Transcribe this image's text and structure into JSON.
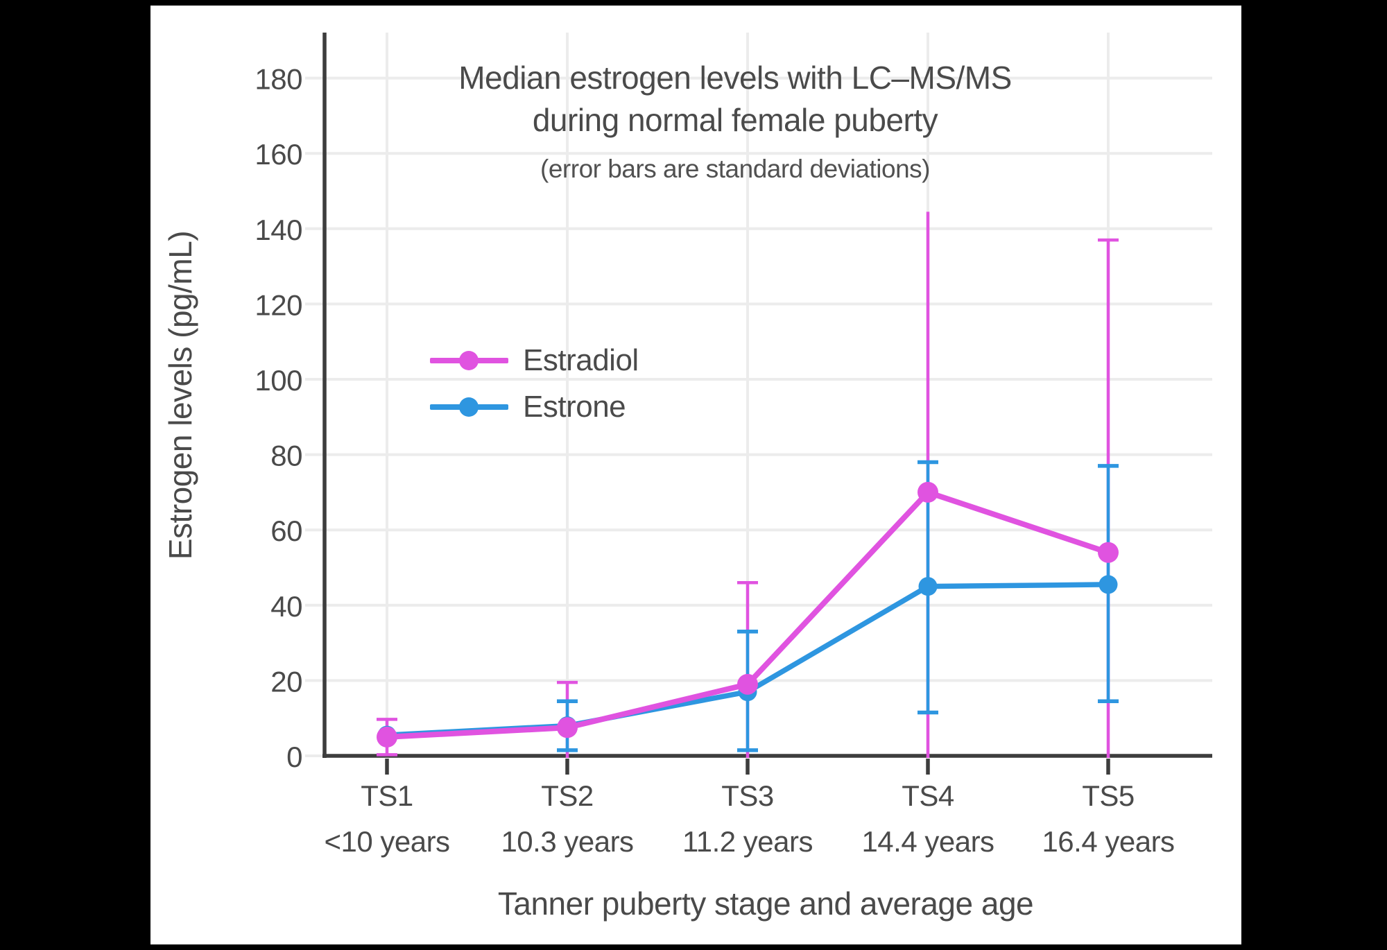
{
  "frame": {
    "background": "#000000",
    "canvas_background": "#ffffff"
  },
  "chart_data": {
    "type": "line",
    "title": "Median estrogen levels with LC–MS/MS",
    "title_line2": "during normal female puberty",
    "subtitle": "(error bars are standard deviations)",
    "xlabel": "Tanner puberty stage and average age",
    "ylabel": "Estrogen levels (pg/mL)",
    "categories": [
      "TS1",
      "TS2",
      "TS3",
      "TS4",
      "TS5"
    ],
    "category_sublabels": [
      "<10 years",
      "10.3 years",
      "11.2 years",
      "14.4 years",
      "16.4 years"
    ],
    "y_ticks": [
      0,
      20,
      40,
      60,
      80,
      100,
      120,
      140,
      160,
      180
    ],
    "ylim": [
      0,
      192
    ],
    "grid": true,
    "legend_position": "inside-upper-left",
    "colors": {
      "estradiol": "#E053E0",
      "estrone": "#2E96E0",
      "axis": "#3d3d3d",
      "gridline": "#ececec",
      "text": "#4a4a4a"
    },
    "series": [
      {
        "name": "Estradiol",
        "color": "#E053E0",
        "values": [
          5,
          7.5,
          19,
          70,
          54
        ],
        "error_upper": [
          9.7,
          19.5,
          46,
          144.5,
          137
        ],
        "error_lower": [
          0.3,
          0,
          0,
          0,
          0
        ],
        "cap_top": [
          true,
          true,
          true,
          false,
          true
        ],
        "cap_bottom": [
          true,
          false,
          false,
          false,
          false
        ]
      },
      {
        "name": "Estrone",
        "color": "#2E96E0",
        "values": [
          5.5,
          8,
          17,
          45,
          45.5
        ],
        "error_upper": [
          null,
          14.5,
          33,
          78,
          77
        ],
        "error_lower": [
          null,
          1.5,
          1.5,
          11.5,
          14.5
        ],
        "cap_top": [
          false,
          true,
          true,
          true,
          true
        ],
        "cap_bottom": [
          false,
          true,
          true,
          true,
          true
        ]
      }
    ]
  }
}
